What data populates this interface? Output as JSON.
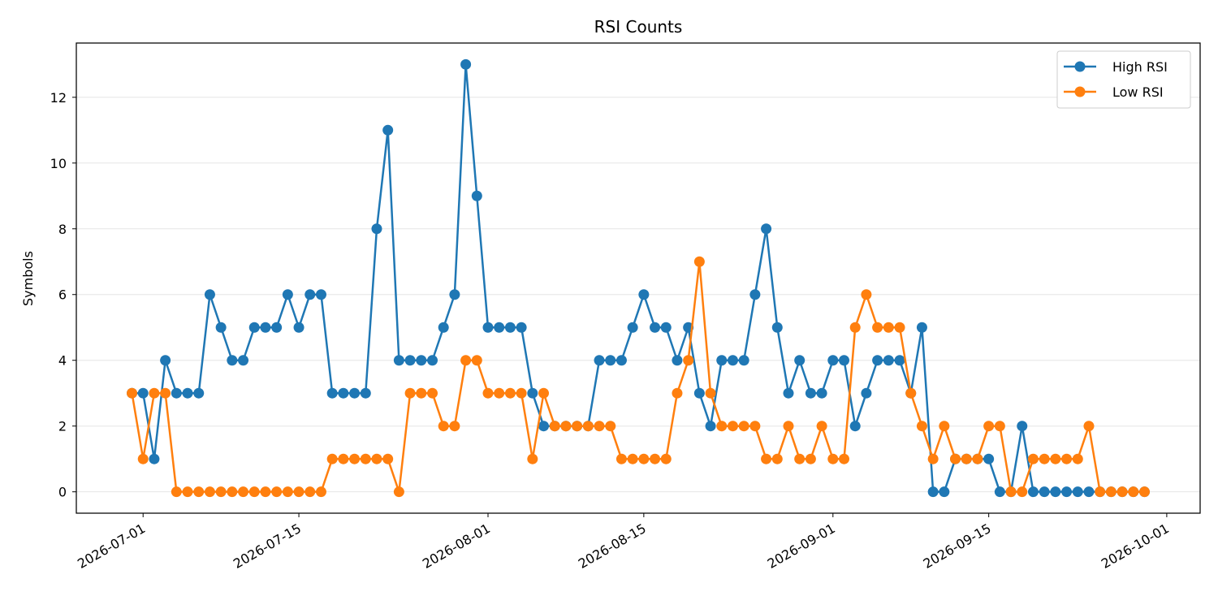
{
  "chart_data": {
    "type": "line",
    "title": "RSI Counts",
    "xlabel": "",
    "ylabel": "Symbols",
    "x_start": "2026-06-30",
    "x": [
      "2026-06-30",
      "2026-07-01",
      "2026-07-02",
      "2026-07-03",
      "2026-07-04",
      "2026-07-05",
      "2026-07-06",
      "2026-07-07",
      "2026-07-08",
      "2026-07-09",
      "2026-07-10",
      "2026-07-11",
      "2026-07-12",
      "2026-07-13",
      "2026-07-14",
      "2026-07-15",
      "2026-07-16",
      "2026-07-17",
      "2026-07-18",
      "2026-07-19",
      "2026-07-20",
      "2026-07-21",
      "2026-07-22",
      "2026-07-23",
      "2026-07-24",
      "2026-07-25",
      "2026-07-26",
      "2026-07-27",
      "2026-07-28",
      "2026-07-29",
      "2026-07-30",
      "2026-07-31",
      "2026-08-01",
      "2026-08-02",
      "2026-08-03",
      "2026-08-04",
      "2026-08-05",
      "2026-08-06",
      "2026-08-07",
      "2026-08-08",
      "2026-08-09",
      "2026-08-10",
      "2026-08-11",
      "2026-08-12",
      "2026-08-13",
      "2026-08-14",
      "2026-08-15",
      "2026-08-16",
      "2026-08-17",
      "2026-08-18",
      "2026-08-19",
      "2026-08-20",
      "2026-08-21",
      "2026-08-22",
      "2026-08-23",
      "2026-08-24",
      "2026-08-25",
      "2026-08-26",
      "2026-08-27",
      "2026-08-28",
      "2026-08-29",
      "2026-08-30",
      "2026-08-31",
      "2026-09-01",
      "2026-09-02",
      "2026-09-03",
      "2026-09-04",
      "2026-09-05",
      "2026-09-06",
      "2026-09-07",
      "2026-09-08",
      "2026-09-09",
      "2026-09-10",
      "2026-09-11",
      "2026-09-12",
      "2026-09-13",
      "2026-09-14",
      "2026-09-15",
      "2026-09-16",
      "2026-09-17",
      "2026-09-18",
      "2026-09-19",
      "2026-09-20",
      "2026-09-21",
      "2026-09-22",
      "2026-09-23",
      "2026-09-24",
      "2026-09-25",
      "2026-09-26",
      "2026-09-27",
      "2026-09-28",
      "2026-09-29"
    ],
    "series": [
      {
        "name": "High RSI",
        "color": "#1f77b4",
        "values": [
          3,
          3,
          1,
          4,
          3,
          3,
          3,
          6,
          5,
          4,
          4,
          5,
          5,
          5,
          6,
          5,
          6,
          6,
          3,
          3,
          3,
          3,
          8,
          11,
          4,
          4,
          4,
          4,
          5,
          6,
          13,
          9,
          5,
          5,
          5,
          5,
          3,
          2,
          2,
          2,
          2,
          2,
          4,
          4,
          4,
          5,
          6,
          5,
          5,
          4,
          5,
          3,
          2,
          4,
          4,
          4,
          6,
          8,
          5,
          3,
          4,
          3,
          3,
          4,
          4,
          2,
          3,
          4,
          4,
          4,
          3,
          5,
          0,
          0,
          1,
          1,
          1,
          1,
          0,
          0,
          2,
          0,
          0,
          0,
          0,
          0,
          0,
          0,
          0,
          0,
          0,
          0
        ]
      },
      {
        "name": "Low RSI",
        "color": "#ff7f0e",
        "values": [
          3,
          1,
          3,
          3,
          0,
          0,
          0,
          0,
          0,
          0,
          0,
          0,
          0,
          0,
          0,
          0,
          0,
          0,
          1,
          1,
          1,
          1,
          1,
          1,
          0,
          3,
          3,
          3,
          2,
          2,
          4,
          4,
          3,
          3,
          3,
          3,
          1,
          3,
          2,
          2,
          2,
          2,
          2,
          2,
          1,
          1,
          1,
          1,
          1,
          3,
          4,
          7,
          3,
          2,
          2,
          2,
          2,
          1,
          1,
          2,
          1,
          1,
          2,
          1,
          1,
          5,
          6,
          5,
          5,
          5,
          3,
          2,
          1,
          2,
          1,
          1,
          1,
          2,
          2,
          0,
          0,
          1,
          1,
          1,
          1,
          1,
          2,
          0,
          0,
          0,
          0,
          0
        ]
      }
    ],
    "ylim": [
      -0.65,
      13.65
    ],
    "yticks": [
      0,
      2,
      4,
      6,
      8,
      10,
      12
    ],
    "xticks": [
      "2026-07-01",
      "2026-07-15",
      "2026-08-01",
      "2026-08-15",
      "2026-09-01",
      "2026-09-15",
      "2026-10-01"
    ],
    "xlim": [
      "2026-06-25",
      "2026-10-04"
    ],
    "grid": "y-axis only",
    "legend_position": "top-right"
  }
}
